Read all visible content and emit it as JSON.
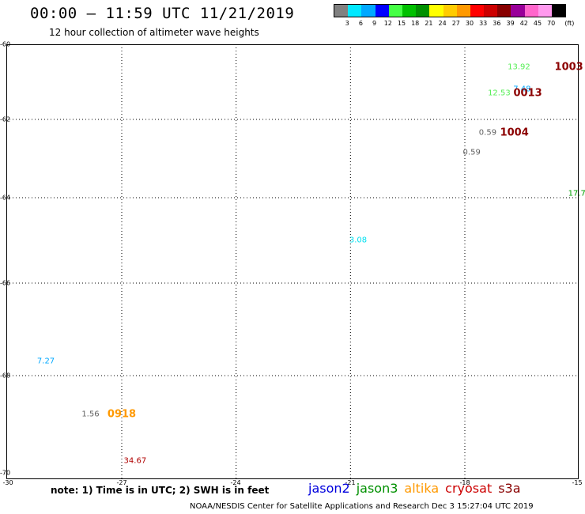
{
  "header": {
    "title": "00:00 – 11:59 UTC 11/21/2019",
    "subtitle": "12 hour collection of altimeter wave heights"
  },
  "legend": {
    "unit": "(ft)",
    "colors": [
      "#808080",
      "#00e8ff",
      "#00a8ff",
      "#0000ff",
      "#44ff44",
      "#00c000",
      "#009000",
      "#ffff00",
      "#ffcc00",
      "#ff9900",
      "#ff0000",
      "#cc0000",
      "#880000",
      "#990099",
      "#ff66cc",
      "#ff99ee",
      "#000000"
    ],
    "labels": [
      "3",
      "6",
      "9",
      "12",
      "15",
      "18",
      "21",
      "24",
      "27",
      "30",
      "33",
      "36",
      "39",
      "42",
      "45",
      "70"
    ]
  },
  "axes": {
    "lat_labels": [
      "-60",
      "-62",
      "-64",
      "-66",
      "-68",
      "-70"
    ],
    "lon_labels": [
      "-30",
      "-27",
      "-24",
      "-21",
      "-18",
      "-15"
    ]
  },
  "observations": [
    {
      "text": "1003",
      "color": "#8b0000",
      "lon": -15.27,
      "lat": -60.62,
      "big": true
    },
    {
      "text": "13.92",
      "color": "#55ee55",
      "lon": -16.58,
      "lat": -60.62,
      "big": false
    },
    {
      "text": "12.53",
      "color": "#55ee55",
      "lon": -17.1,
      "lat": -61.3,
      "big": false
    },
    {
      "text": "7.48",
      "color": "#00a8ff",
      "lon": -16.5,
      "lat": -61.2,
      "big": false
    },
    {
      "text": "0013",
      "color": "#8b0000",
      "lon": -16.35,
      "lat": -61.3,
      "big": true
    },
    {
      "text": "0.59",
      "color": "#606060",
      "lon": -17.4,
      "lat": -62.34,
      "big": false
    },
    {
      "text": "1004",
      "color": "#8b0000",
      "lon": -16.7,
      "lat": -62.34,
      "big": true
    },
    {
      "text": "0.59",
      "color": "#606060",
      "lon": -17.82,
      "lat": -62.84,
      "big": false
    },
    {
      "text": "17.7",
      "color": "#00a000",
      "lon": -15.06,
      "lat": -63.9,
      "big": false
    },
    {
      "text": "3.08",
      "color": "#00e0f0",
      "lon": -20.8,
      "lat": -65.0,
      "big": false
    },
    {
      "text": "7.27",
      "color": "#00a8ff",
      "lon": -28.99,
      "lat": -67.7,
      "big": false
    },
    {
      "text": "1.56",
      "color": "#606060",
      "lon": -27.82,
      "lat": -68.8,
      "big": false
    },
    {
      "text": "0918",
      "color": "#ff9900",
      "lon": -27.0,
      "lat": -68.8,
      "big": true
    },
    {
      "text": "34.67",
      "color": "#b00000",
      "lon": -26.65,
      "lat": -69.75,
      "big": false
    }
  ],
  "footer": {
    "note": "note: 1) Time is in UTC; 2) SWH is in feet",
    "satellites": [
      {
        "name": "jason2",
        "color": "#0000dd"
      },
      {
        "name": "jason3",
        "color": "#009000"
      },
      {
        "name": "altika",
        "color": "#ff9900"
      },
      {
        "name": "cryosat",
        "color": "#cc0000"
      },
      {
        "name": "s3a",
        "color": "#880000"
      }
    ],
    "credit": "NOAA/NESDIS Center for Satellite Applications and Research    Dec  3 15:27:04 UTC 2019"
  }
}
